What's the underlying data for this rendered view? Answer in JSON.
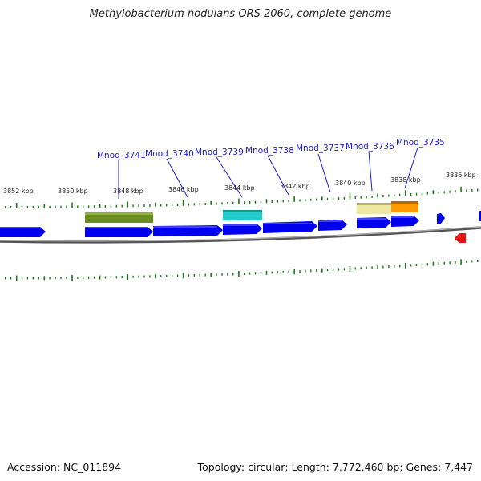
{
  "title": "Methylobacterium nodulans ORS 2060, complete genome",
  "footer": {
    "accession": "Accession: NC_011894",
    "summary": "Topology: circular; Length: 7,772,460 bp; Genes: 7,447"
  },
  "colors": {
    "gene_blue": "#0000ee",
    "backbone": "#808080",
    "tick": "#1a7a1a",
    "label": "#1a1acc",
    "olive": "#6b8e23",
    "cyan": "#22cccc",
    "pale_yellow": "#eee8a0",
    "orange": "#ff9a00",
    "red": "#ee1111"
  },
  "scale_labels": [
    "3852 kbp",
    "3850 kbp",
    "3848 kbp",
    "3846 kbp",
    "3844 kbp",
    "3842 kbp",
    "3840 kbp",
    "3838 kbp",
    "3836 kbp"
  ],
  "gene_labels": [
    "Mnod_3741",
    "Mnod_3740",
    "Mnod_3739",
    "Mnod_3738",
    "Mnod_3737",
    "Mnod_3736",
    "Mnod_3735"
  ]
}
